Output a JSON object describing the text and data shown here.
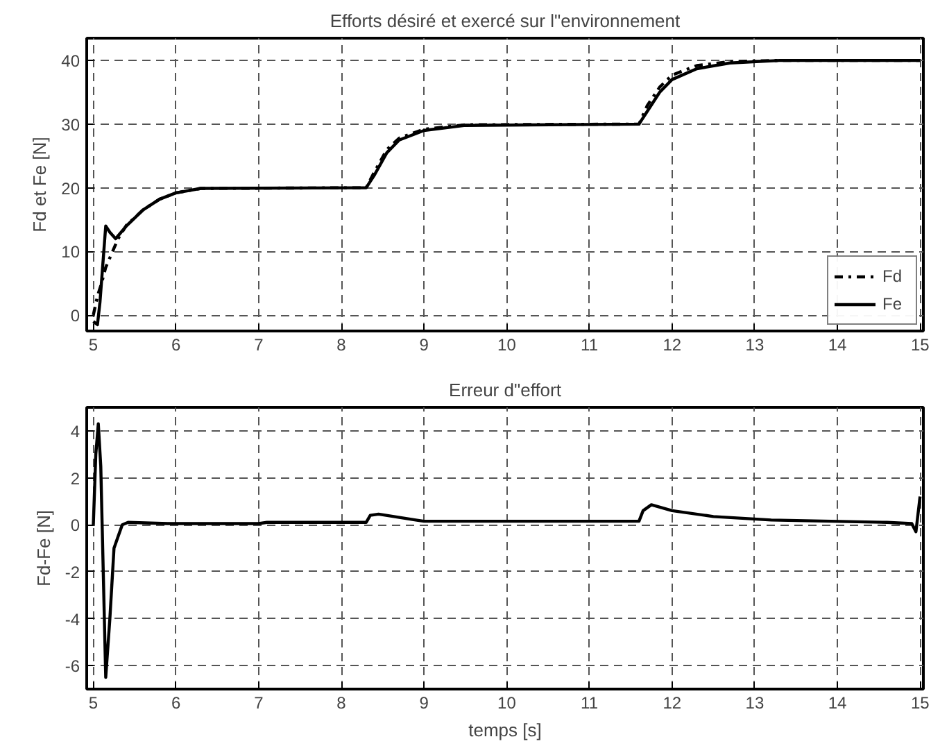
{
  "chart_data": [
    {
      "type": "line",
      "title": "Efforts désiré et exercé sur l\"environnement",
      "ylabel": "Fd et Fe [N]",
      "xlim": [
        4.92,
        15.04
      ],
      "xticks": [
        5,
        6,
        7,
        8,
        9,
        10,
        11,
        12,
        13,
        14,
        15
      ],
      "ylim": [
        -2.5,
        43.5
      ],
      "yticks": [
        0,
        10,
        20,
        30,
        40
      ],
      "grid": true,
      "legend": "bottom right",
      "series": [
        {
          "name": "Fd",
          "color": "#000000",
          "line_style": "dashdot",
          "x": [
            5.0,
            5.05,
            5.1,
            5.15,
            5.25,
            5.3,
            5.4,
            5.6,
            5.8,
            6.0,
            6.3,
            8.3,
            8.4,
            8.55,
            8.7,
            9.0,
            9.5,
            11.6,
            11.7,
            11.85,
            12.0,
            12.3,
            12.7,
            13.3,
            15.0
          ],
          "values": [
            0,
            3,
            5,
            7.5,
            10.5,
            12,
            14.1,
            16.5,
            18.2,
            19.2,
            19.9,
            20,
            22.5,
            26,
            27.8,
            29.2,
            29.9,
            30,
            32.9,
            35.8,
            37.7,
            39.2,
            39.8,
            40,
            40
          ]
        },
        {
          "name": "Fe",
          "color": "#000000",
          "line_style": "solid",
          "x": [
            5.0,
            5.05,
            5.08,
            5.15,
            5.2,
            5.27,
            5.4,
            5.6,
            5.8,
            6.0,
            6.3,
            8.3,
            8.4,
            8.55,
            8.7,
            9.0,
            9.5,
            11.6,
            11.7,
            11.85,
            12.0,
            12.3,
            12.7,
            13.3,
            15.0
          ],
          "values": [
            -1,
            -1.5,
            2,
            14,
            13,
            12,
            14,
            16.5,
            18.2,
            19.2,
            19.9,
            20,
            22,
            25.5,
            27.5,
            29,
            29.8,
            30,
            32,
            35,
            37,
            38.7,
            39.6,
            40,
            40
          ]
        }
      ]
    },
    {
      "type": "line",
      "title": "Erreur d\"effort",
      "xlabel": "temps [s]",
      "ylabel": "Fd-Fe [N]",
      "xlim": [
        4.92,
        15.04
      ],
      "xticks": [
        5,
        6,
        7,
        8,
        9,
        10,
        11,
        12,
        13,
        14,
        15
      ],
      "ylim": [
        -7,
        5
      ],
      "yticks": [
        -6,
        -4,
        -2,
        0,
        2,
        4
      ],
      "grid": true,
      "series": [
        {
          "color": "#000000",
          "line_style": "solid",
          "x": [
            5.0,
            5.03,
            5.06,
            5.09,
            5.12,
            5.15,
            5.2,
            5.25,
            5.3,
            5.35,
            5.42,
            5.9,
            7.0,
            7.1,
            8.3,
            8.35,
            8.45,
            8.9,
            9.0,
            11.6,
            11.65,
            11.75,
            12.0,
            12.5,
            13.2,
            14.6,
            14.9,
            14.95,
            15.0
          ],
          "values": [
            0,
            3,
            4.3,
            2.5,
            -2,
            -6.5,
            -4,
            -1,
            -0.5,
            0,
            0.1,
            0.05,
            0.05,
            0.1,
            0.1,
            0.4,
            0.45,
            0.2,
            0.15,
            0.15,
            0.6,
            0.85,
            0.6,
            0.35,
            0.2,
            0.1,
            0.05,
            -0.3,
            1.2
          ]
        }
      ]
    }
  ]
}
